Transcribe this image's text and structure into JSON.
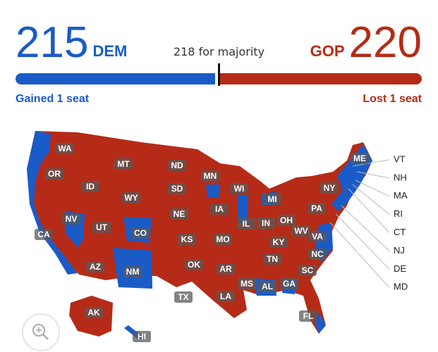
{
  "header": {
    "dem": {
      "seats": 215,
      "party": "DEM",
      "change": "Gained 1 seat"
    },
    "gop": {
      "seats": 220,
      "party": "GOP",
      "change": "Lost 1 seat"
    },
    "majority": {
      "value": 218,
      "label": "218 for majority"
    }
  },
  "map": {
    "states": [
      "WA",
      "OR",
      "MT",
      "ND",
      "MN",
      "ID",
      "WY",
      "SD",
      "WI",
      "MI",
      "NY",
      "ME",
      "NV",
      "UT",
      "CO",
      "NE",
      "IA",
      "IL",
      "IN",
      "OH",
      "PA",
      "CA",
      "KS",
      "MO",
      "KY",
      "WV",
      "VA",
      "NC",
      "TN",
      "AZ",
      "NM",
      "OK",
      "AR",
      "SC",
      "MS",
      "AL",
      "GA",
      "TX",
      "LA",
      "FL",
      "AK",
      "HI"
    ],
    "callouts": [
      "VT",
      "NH",
      "MA",
      "RI",
      "CT",
      "NJ",
      "DE",
      "MD"
    ]
  }
}
